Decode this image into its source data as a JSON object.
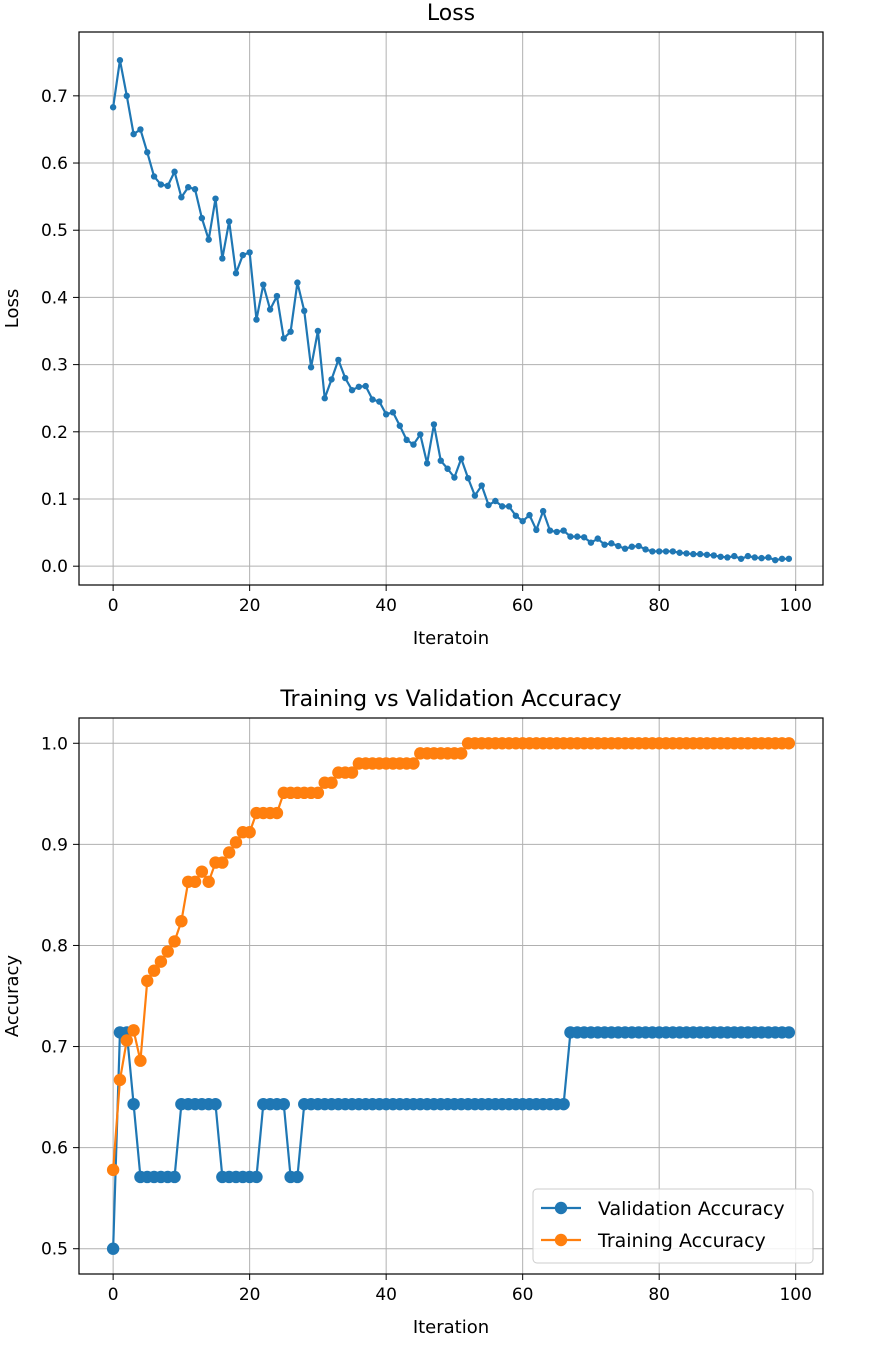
{
  "chart_data": [
    {
      "type": "line",
      "title": "Loss",
      "xlabel": "Iteratoin",
      "ylabel": "Loss",
      "xlim": [
        -5,
        104
      ],
      "ylim": [
        -0.028,
        0.795
      ],
      "xticks": [
        0,
        20,
        40,
        60,
        80,
        100
      ],
      "yticks": [
        0.0,
        0.1,
        0.2,
        0.3,
        0.4,
        0.5,
        0.6,
        0.7
      ],
      "xtick_labels": [
        "0",
        "20",
        "40",
        "60",
        "80",
        "100"
      ],
      "ytick_labels": [
        "0.0",
        "0.1",
        "0.2",
        "0.3",
        "0.4",
        "0.5",
        "0.6",
        "0.7"
      ],
      "grid": true,
      "series": [
        {
          "color": "#1f77b4",
          "marker": "small-dot",
          "x": [
            0,
            1,
            2,
            3,
            4,
            5,
            6,
            7,
            8,
            9,
            10,
            11,
            12,
            13,
            14,
            15,
            16,
            17,
            18,
            19,
            20,
            21,
            22,
            23,
            24,
            25,
            26,
            27,
            28,
            29,
            30,
            31,
            32,
            33,
            34,
            35,
            36,
            37,
            38,
            39,
            40,
            41,
            42,
            43,
            44,
            45,
            46,
            47,
            48,
            49,
            50,
            51,
            52,
            53,
            54,
            55,
            56,
            57,
            58,
            59,
            60,
            61,
            62,
            63,
            64,
            65,
            66,
            67,
            68,
            69,
            70,
            71,
            72,
            73,
            74,
            75,
            76,
            77,
            78,
            79,
            80,
            81,
            82,
            83,
            84,
            85,
            86,
            87,
            88,
            89,
            90,
            91,
            92,
            93,
            94,
            95,
            96,
            97,
            98,
            99
          ],
          "values": [
            0.683,
            0.753,
            0.7,
            0.643,
            0.65,
            0.616,
            0.58,
            0.568,
            0.566,
            0.587,
            0.549,
            0.564,
            0.561,
            0.518,
            0.486,
            0.547,
            0.458,
            0.513,
            0.436,
            0.463,
            0.467,
            0.367,
            0.419,
            0.382,
            0.402,
            0.339,
            0.349,
            0.422,
            0.38,
            0.296,
            0.35,
            0.25,
            0.278,
            0.307,
            0.28,
            0.262,
            0.267,
            0.268,
            0.248,
            0.245,
            0.226,
            0.229,
            0.209,
            0.188,
            0.181,
            0.196,
            0.153,
            0.211,
            0.157,
            0.145,
            0.132,
            0.16,
            0.131,
            0.105,
            0.12,
            0.091,
            0.097,
            0.089,
            0.089,
            0.075,
            0.067,
            0.076,
            0.054,
            0.082,
            0.053,
            0.051,
            0.053,
            0.044,
            0.044,
            0.043,
            0.035,
            0.041,
            0.032,
            0.034,
            0.03,
            0.026,
            0.029,
            0.03,
            0.025,
            0.022,
            0.022,
            0.022,
            0.022,
            0.02,
            0.019,
            0.018,
            0.018,
            0.017,
            0.016,
            0.014,
            0.013,
            0.015,
            0.011,
            0.015,
            0.013,
            0.012,
            0.013,
            0.009,
            0.011,
            0.011
          ]
        }
      ]
    },
    {
      "type": "line",
      "title": "Training vs Validation Accuracy",
      "xlabel": "Iteration",
      "ylabel": "Accuracy",
      "xlim": [
        -5,
        104
      ],
      "ylim": [
        0.475,
        1.025
      ],
      "xticks": [
        0,
        20,
        40,
        60,
        80,
        100
      ],
      "yticks": [
        0.5,
        0.6,
        0.7,
        0.8,
        0.9,
        1.0
      ],
      "xtick_labels": [
        "0",
        "20",
        "40",
        "60",
        "80",
        "100"
      ],
      "ytick_labels": [
        "0.5",
        "0.6",
        "0.7",
        "0.8",
        "0.9",
        "1.0"
      ],
      "grid": true,
      "legend": "bottom-right",
      "series": [
        {
          "name": "Validation Accuracy",
          "color": "#1f77b4",
          "marker": "dot",
          "x": [
            0,
            1,
            2,
            3,
            4,
            5,
            6,
            7,
            8,
            9,
            10,
            11,
            12,
            13,
            14,
            15,
            16,
            17,
            18,
            19,
            20,
            21,
            22,
            23,
            24,
            25,
            26,
            27,
            28,
            29,
            30,
            31,
            32,
            33,
            34,
            35,
            36,
            37,
            38,
            39,
            40,
            41,
            42,
            43,
            44,
            45,
            46,
            47,
            48,
            49,
            50,
            51,
            52,
            53,
            54,
            55,
            56,
            57,
            58,
            59,
            60,
            61,
            62,
            63,
            64,
            65,
            66,
            67,
            68,
            69,
            70,
            71,
            72,
            73,
            74,
            75,
            76,
            77,
            78,
            79,
            80,
            81,
            82,
            83,
            84,
            85,
            86,
            87,
            88,
            89,
            90,
            91,
            92,
            93,
            94,
            95,
            96,
            97,
            98,
            99
          ],
          "values": [
            0.5,
            0.714,
            0.714,
            0.643,
            0.571,
            0.571,
            0.571,
            0.571,
            0.571,
            0.571,
            0.643,
            0.643,
            0.643,
            0.643,
            0.643,
            0.643,
            0.571,
            0.571,
            0.571,
            0.571,
            0.571,
            0.571,
            0.643,
            0.643,
            0.643,
            0.643,
            0.571,
            0.571,
            0.643,
            0.643,
            0.643,
            0.643,
            0.643,
            0.643,
            0.643,
            0.643,
            0.643,
            0.643,
            0.643,
            0.643,
            0.643,
            0.643,
            0.643,
            0.643,
            0.643,
            0.643,
            0.643,
            0.643,
            0.643,
            0.643,
            0.643,
            0.643,
            0.643,
            0.643,
            0.643,
            0.643,
            0.643,
            0.643,
            0.643,
            0.643,
            0.643,
            0.643,
            0.643,
            0.643,
            0.643,
            0.643,
            0.643,
            0.714,
            0.714,
            0.714,
            0.714,
            0.714,
            0.714,
            0.714,
            0.714,
            0.714,
            0.714,
            0.714,
            0.714,
            0.714,
            0.714,
            0.714,
            0.714,
            0.714,
            0.714,
            0.714,
            0.714,
            0.714,
            0.714,
            0.714,
            0.714,
            0.714,
            0.714,
            0.714,
            0.714,
            0.714,
            0.714,
            0.714,
            0.714,
            0.714
          ]
        },
        {
          "name": "Training Accuracy",
          "color": "#ff7f0e",
          "marker": "dot",
          "x": [
            0,
            1,
            2,
            3,
            4,
            5,
            6,
            7,
            8,
            9,
            10,
            11,
            12,
            13,
            14,
            15,
            16,
            17,
            18,
            19,
            20,
            21,
            22,
            23,
            24,
            25,
            26,
            27,
            28,
            29,
            30,
            31,
            32,
            33,
            34,
            35,
            36,
            37,
            38,
            39,
            40,
            41,
            42,
            43,
            44,
            45,
            46,
            47,
            48,
            49,
            50,
            51,
            52,
            53,
            54,
            55,
            56,
            57,
            58,
            59,
            60,
            61,
            62,
            63,
            64,
            65,
            66,
            67,
            68,
            69,
            70,
            71,
            72,
            73,
            74,
            75,
            76,
            77,
            78,
            79,
            80,
            81,
            82,
            83,
            84,
            85,
            86,
            87,
            88,
            89,
            90,
            91,
            92,
            93,
            94,
            95,
            96,
            97,
            98,
            99
          ],
          "values": [
            0.578,
            0.667,
            0.706,
            0.716,
            0.686,
            0.765,
            0.775,
            0.784,
            0.794,
            0.804,
            0.824,
            0.863,
            0.863,
            0.873,
            0.863,
            0.882,
            0.882,
            0.892,
            0.902,
            0.912,
            0.912,
            0.931,
            0.931,
            0.931,
            0.931,
            0.951,
            0.951,
            0.951,
            0.951,
            0.951,
            0.951,
            0.961,
            0.961,
            0.971,
            0.971,
            0.971,
            0.98,
            0.98,
            0.98,
            0.98,
            0.98,
            0.98,
            0.98,
            0.98,
            0.98,
            0.99,
            0.99,
            0.99,
            0.99,
            0.99,
            0.99,
            0.99,
            1.0,
            1.0,
            1.0,
            1.0,
            1.0,
            1.0,
            1.0,
            1.0,
            1.0,
            1.0,
            1.0,
            1.0,
            1.0,
            1.0,
            1.0,
            1.0,
            1.0,
            1.0,
            1.0,
            1.0,
            1.0,
            1.0,
            1.0,
            1.0,
            1.0,
            1.0,
            1.0,
            1.0,
            1.0,
            1.0,
            1.0,
            1.0,
            1.0,
            1.0,
            1.0,
            1.0,
            1.0,
            1.0,
            1.0,
            1.0,
            1.0,
            1.0,
            1.0,
            1.0,
            1.0,
            1.0,
            1.0,
            1.0
          ]
        }
      ]
    }
  ]
}
